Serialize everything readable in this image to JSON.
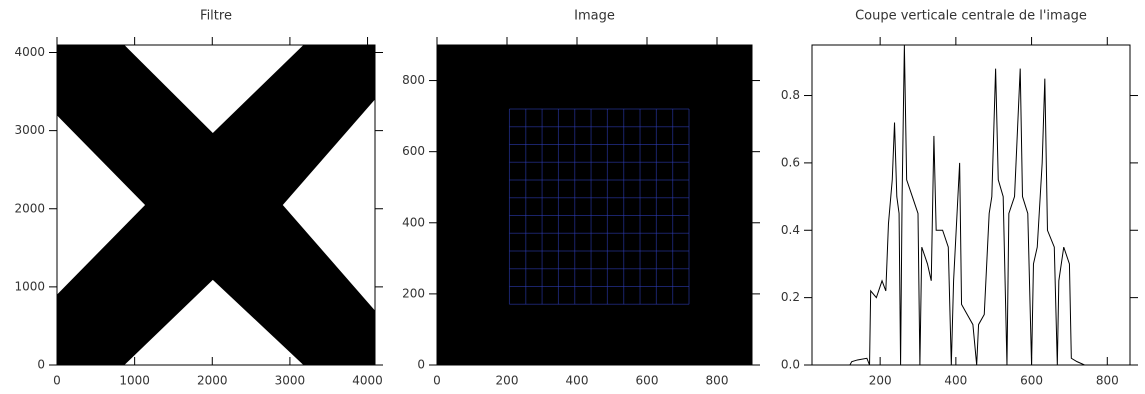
{
  "chart_data": [
    {
      "type": "image",
      "title": "Filtre",
      "xlim": [
        0,
        4096
      ],
      "ylim": [
        0,
        4096
      ],
      "xticks": [
        0,
        1000,
        2000,
        3000,
        4000
      ],
      "yticks": [
        0,
        1000,
        2000,
        3000,
        4000
      ],
      "color": "#000000"
    },
    {
      "type": "image",
      "title": "Image",
      "xlim": [
        0,
        900
      ],
      "ylim": [
        0,
        900
      ],
      "xticks": [
        0,
        200,
        400,
        600,
        800
      ],
      "yticks": [
        0,
        200,
        400,
        600,
        800
      ],
      "color": "#3040c0"
    },
    {
      "type": "line",
      "title": "Coupe verticale centrale de l'image",
      "xlim": [
        20,
        860
      ],
      "ylim": [
        0,
        0.95
      ],
      "xticks": [
        200,
        400,
        600,
        800
      ],
      "yticks": [
        {
          "value": 0,
          "label": "0.0"
        },
        0.2,
        0.4,
        0.6,
        0.8
      ],
      "x": [
        20,
        120,
        125,
        140,
        165,
        172,
        175,
        190,
        205,
        215,
        222,
        232,
        238,
        244,
        250,
        254,
        258,
        264,
        270,
        285,
        300,
        305,
        310,
        325,
        335,
        342,
        348,
        365,
        380,
        388,
        394,
        410,
        415,
        430,
        445,
        455,
        460,
        475,
        488,
        495,
        505,
        512,
        525,
        535,
        540,
        555,
        570,
        576,
        590,
        600,
        605,
        615,
        628,
        635,
        642,
        660,
        668,
        672,
        685,
        700,
        705,
        720,
        740,
        860
      ],
      "series": [
        {
          "color": "#000000",
          "values": [
            0,
            0,
            0.01,
            0.015,
            0.02,
            0,
            0.22,
            0.2,
            0.25,
            0.22,
            0.42,
            0.55,
            0.72,
            0.5,
            0.45,
            0,
            0.5,
            0.95,
            0.55,
            0.5,
            0.45,
            0,
            0.35,
            0.3,
            0.25,
            0.68,
            0.4,
            0.4,
            0.35,
            0,
            0.25,
            0.6,
            0.18,
            0.15,
            0.12,
            0,
            0.12,
            0.15,
            0.45,
            0.5,
            0.88,
            0.55,
            0.5,
            0,
            0.45,
            0.5,
            0.88,
            0.5,
            0.45,
            0,
            0.3,
            0.35,
            0.6,
            0.85,
            0.4,
            0.35,
            0,
            0.25,
            0.35,
            0.3,
            0.02,
            0.01,
            0,
            0
          ]
        }
      ]
    }
  ]
}
